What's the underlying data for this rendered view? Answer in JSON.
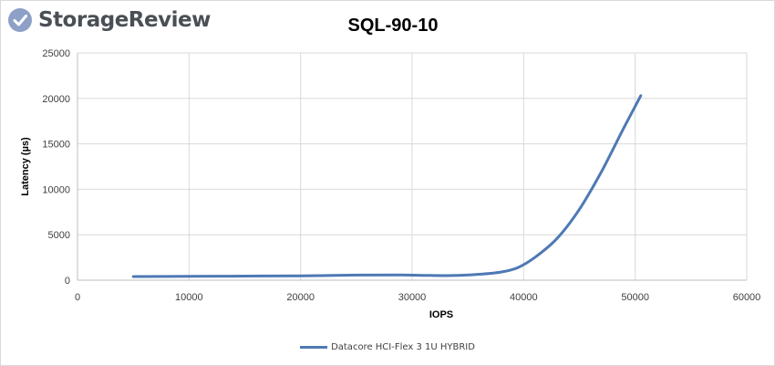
{
  "brand": {
    "name": "StorageReview",
    "icon": "storagereview-logo-icon",
    "color": "#4a4f55",
    "icon_color": "#8da0c8"
  },
  "colors": {
    "series": "#4e79b4",
    "grid": "#d9d9d9",
    "axis": "#bfbfbf"
  },
  "chart_data": {
    "type": "line",
    "title": "SQL-90-10",
    "xlabel": "IOPS",
    "ylabel": "Latency (µs)",
    "xlim": [
      0,
      60000
    ],
    "ylim": [
      0,
      25000
    ],
    "xticks": [
      0,
      10000,
      20000,
      30000,
      40000,
      50000,
      60000
    ],
    "yticks": [
      0,
      5000,
      10000,
      15000,
      20000,
      25000
    ],
    "grid": true,
    "legend_position": "bottom",
    "series": [
      {
        "name": "Datacore HCI-Flex 3 1U HYBRID",
        "x": [
          5000,
          10000,
          15000,
          20000,
          25000,
          29000,
          31000,
          33500,
          36000,
          38000,
          39500,
          41000,
          43000,
          45000,
          47000,
          49000,
          50500
        ],
        "y": [
          400,
          420,
          450,
          480,
          560,
          570,
          530,
          510,
          650,
          900,
          1400,
          2500,
          4600,
          7800,
          12000,
          16800,
          20300
        ]
      }
    ]
  }
}
